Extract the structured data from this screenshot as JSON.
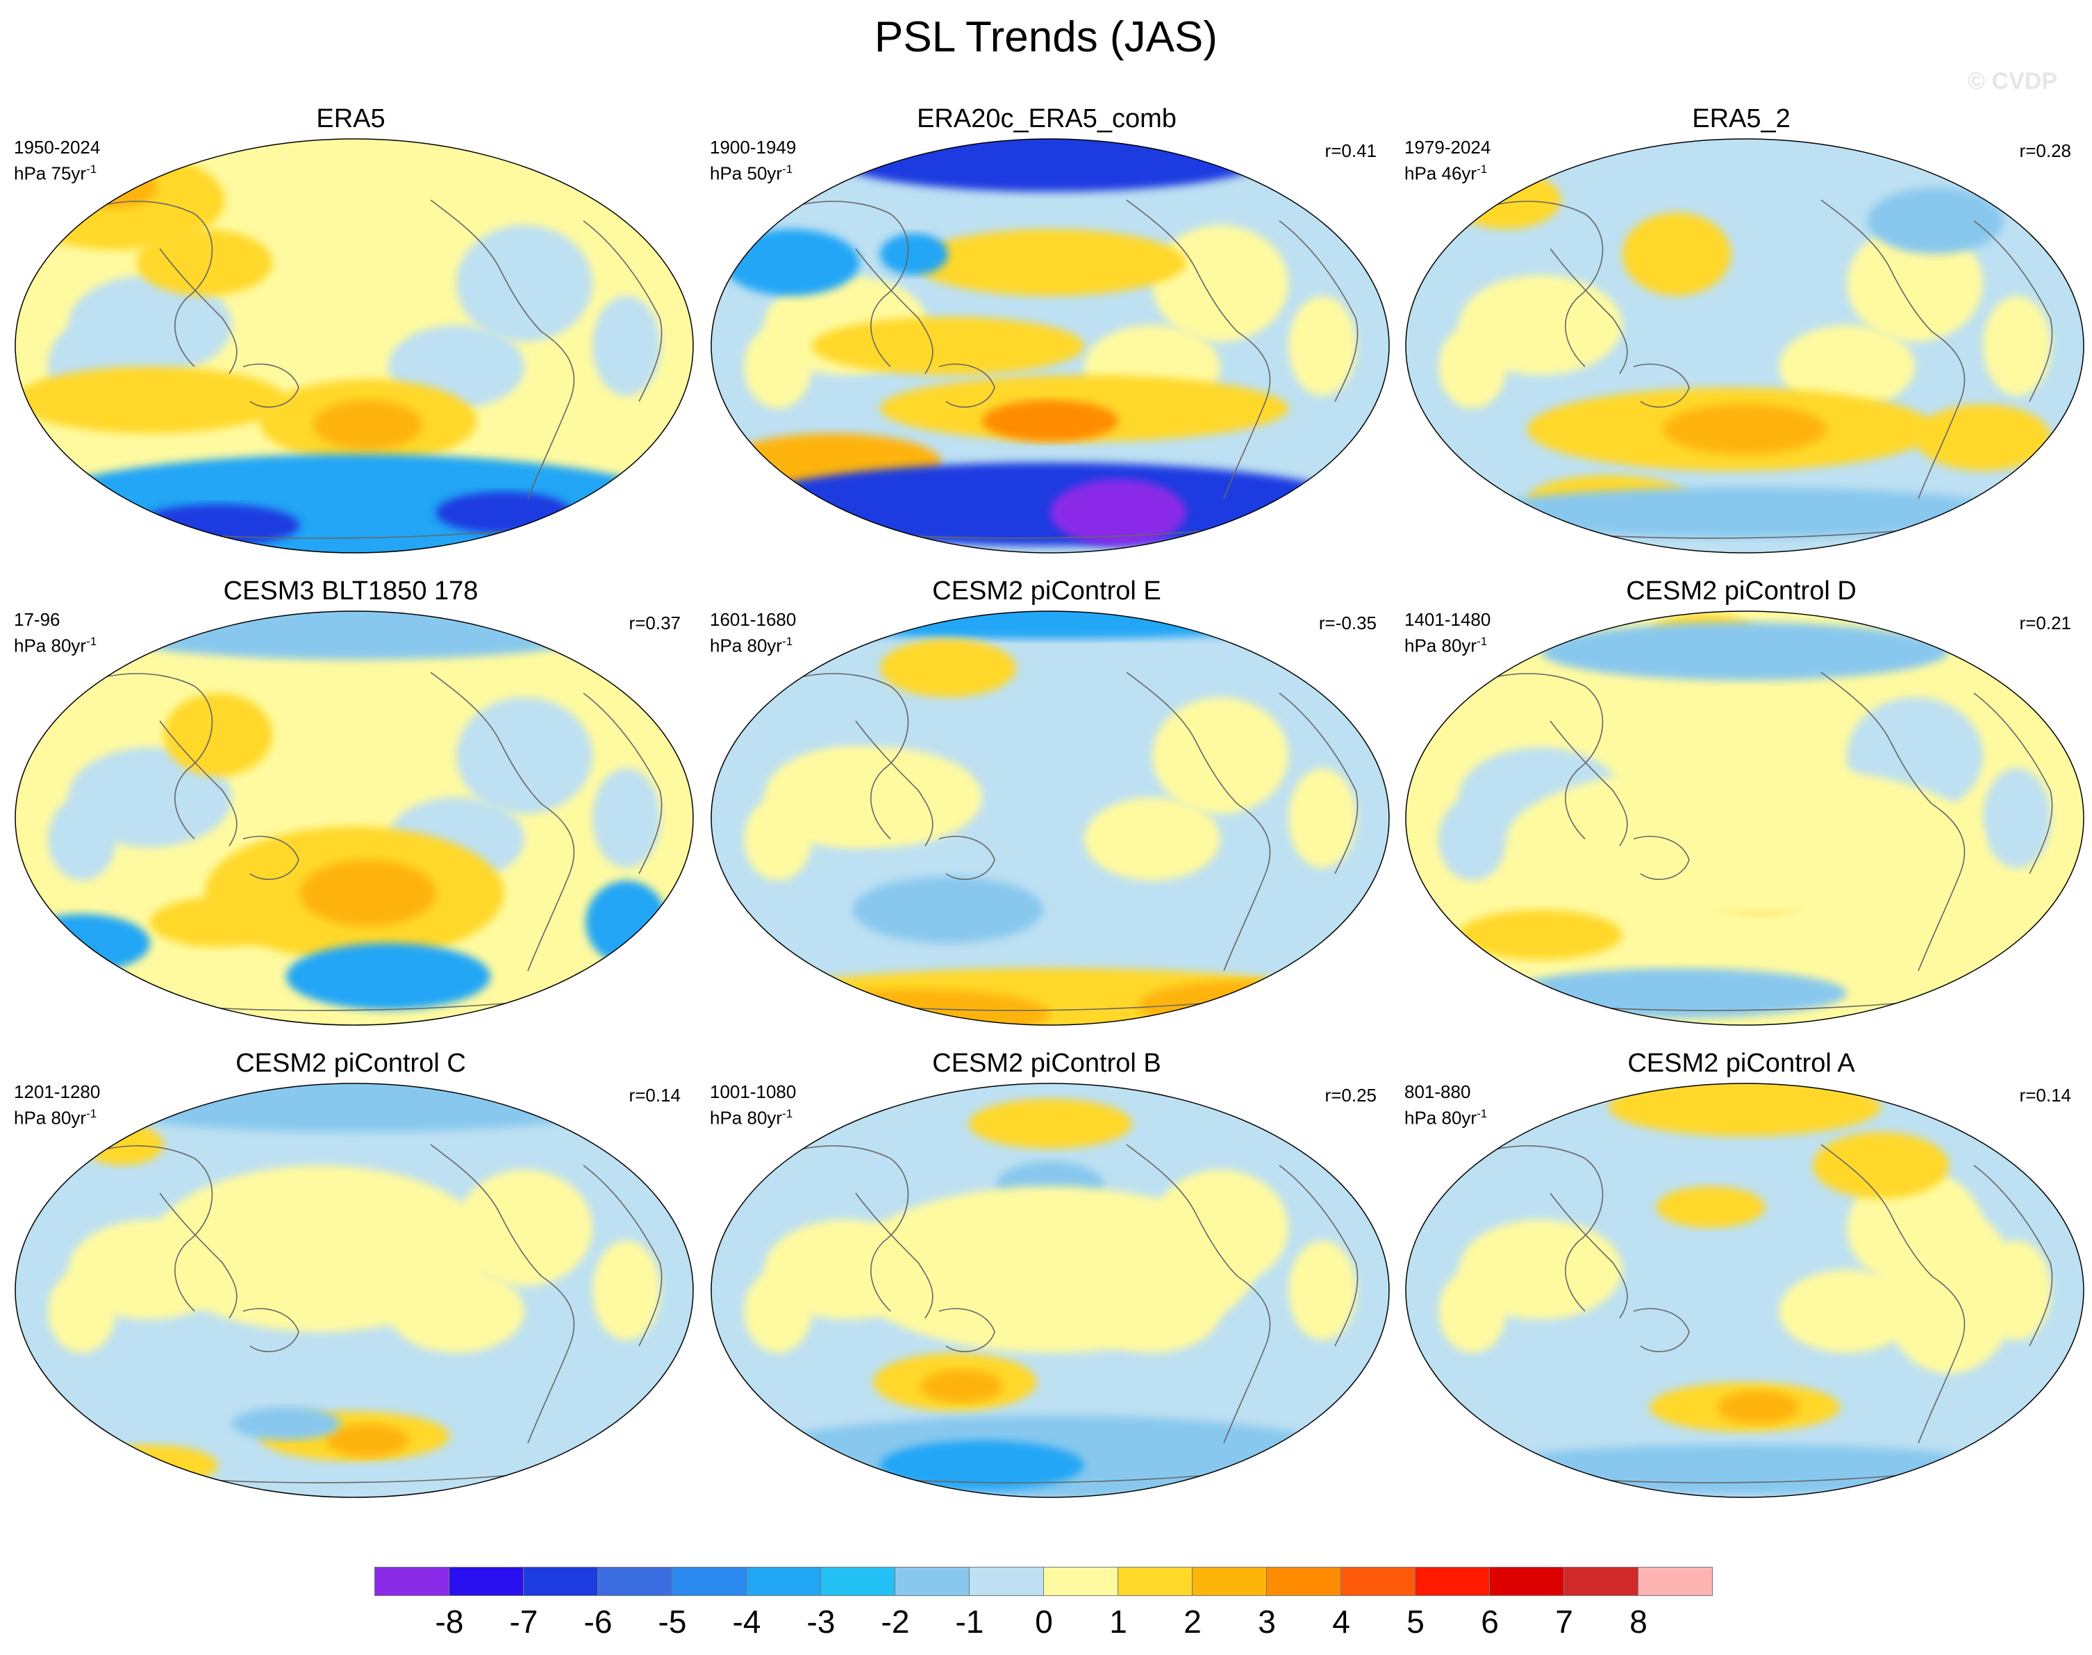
{
  "title": "PSL Trends (JAS)",
  "watermark": "© CVDP",
  "panels": [
    {
      "title": "ERA5",
      "period": "1950-2024",
      "units": "hPa 75yr",
      "units_exp": "-1",
      "r": ""
    },
    {
      "title": "ERA20c_ERA5_comb",
      "period": "1900-1949",
      "units": "hPa 50yr",
      "units_exp": "-1",
      "r": "r=0.41"
    },
    {
      "title": "ERA5_2",
      "period": "1979-2024",
      "units": "hPa 46yr",
      "units_exp": "-1",
      "r": "r=0.28"
    },
    {
      "title": "CESM3 BLT1850 178",
      "period": "17-96",
      "units": "hPa 80yr",
      "units_exp": "-1",
      "r": "r=0.37"
    },
    {
      "title": "CESM2 piControl E",
      "period": "1601-1680",
      "units": "hPa 80yr",
      "units_exp": "-1",
      "r": "r=-0.35"
    },
    {
      "title": "CESM2 piControl D",
      "period": "1401-1480",
      "units": "hPa 80yr",
      "units_exp": "-1",
      "r": "r=0.21"
    },
    {
      "title": "CESM2 piControl C",
      "period": "1201-1280",
      "units": "hPa 80yr",
      "units_exp": "-1",
      "r": "r=0.14"
    },
    {
      "title": "CESM2 piControl B",
      "period": "1001-1080",
      "units": "hPa 80yr",
      "units_exp": "-1",
      "r": "r=0.25"
    },
    {
      "title": "CESM2 piControl A",
      "period": "801-880",
      "units": "hPa 80yr",
      "units_exp": "-1",
      "r": "r=0.14"
    }
  ],
  "colorbar": {
    "colors": [
      "#8a2be8",
      "#2a10f0",
      "#1c3be0",
      "#3a6ee0",
      "#2a8af0",
      "#21a6f5",
      "#22c0f5",
      "#88c8ee",
      "#bde0f2",
      "#fffaa0",
      "#ffd82a",
      "#ffb40a",
      "#ff8c00",
      "#ff5a0a",
      "#ff1a00",
      "#dc0000",
      "#d22a2a",
      "#ffb4b4"
    ],
    "labels": [
      "-8",
      "-7",
      "-6",
      "-5",
      "-4",
      "-3",
      "-2",
      "-1",
      "0",
      "1",
      "2",
      "3",
      "4",
      "5",
      "6",
      "7",
      "8"
    ]
  },
  "palette": {
    "light_blue": "#bde0f2",
    "yellow": "#fffaa0",
    "orange1": "#ffd82a",
    "orange2": "#ffb40a",
    "orange3": "#ff8c00",
    "blue2": "#88c8ee",
    "blue3": "#21a6f5",
    "blue4": "#2a8af0",
    "blue6": "#1c3be0",
    "blue8": "#8a2be8",
    "land": "#666666"
  }
}
